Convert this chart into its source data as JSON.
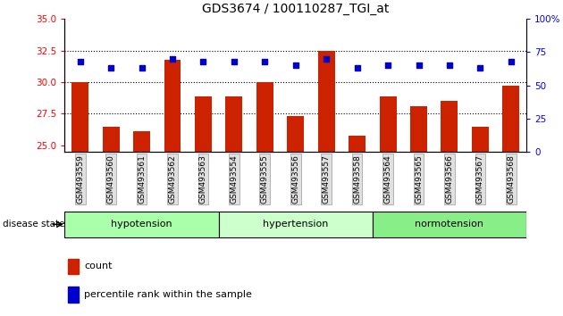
{
  "title": "GDS3674 / 100110287_TGI_at",
  "samples": [
    "GSM493559",
    "GSM493560",
    "GSM493561",
    "GSM493562",
    "GSM493563",
    "GSM493554",
    "GSM493555",
    "GSM493556",
    "GSM493557",
    "GSM493558",
    "GSM493564",
    "GSM493565",
    "GSM493566",
    "GSM493567",
    "GSM493568"
  ],
  "bar_values": [
    30.0,
    26.5,
    26.1,
    31.8,
    28.9,
    28.9,
    30.0,
    27.3,
    32.5,
    25.8,
    28.9,
    28.1,
    28.5,
    26.5,
    29.7
  ],
  "dot_values": [
    68,
    63,
    63,
    70,
    68,
    68,
    68,
    65,
    70,
    63,
    65,
    65,
    65,
    63,
    68
  ],
  "groups": [
    {
      "label": "hypotension",
      "start": 0,
      "end": 5,
      "color": "#aaffaa"
    },
    {
      "label": "hypertension",
      "start": 5,
      "end": 10,
      "color": "#ccffcc"
    },
    {
      "label": "normotension",
      "start": 10,
      "end": 15,
      "color": "#88ee88"
    }
  ],
  "ylim_left": [
    24.5,
    35
  ],
  "ylim_right": [
    0,
    100
  ],
  "yticks_left": [
    25,
    27.5,
    30,
    32.5,
    35
  ],
  "yticks_right": [
    0,
    25,
    50,
    75,
    100
  ],
  "bar_color": "#cc2200",
  "dot_color": "#0000cc",
  "background_color": "#ffffff",
  "legend_count": "count",
  "legend_pct": "percentile rank within the sample",
  "disease_state_label": "disease state",
  "grid_yticks": [
    27.5,
    30.0,
    32.5
  ]
}
